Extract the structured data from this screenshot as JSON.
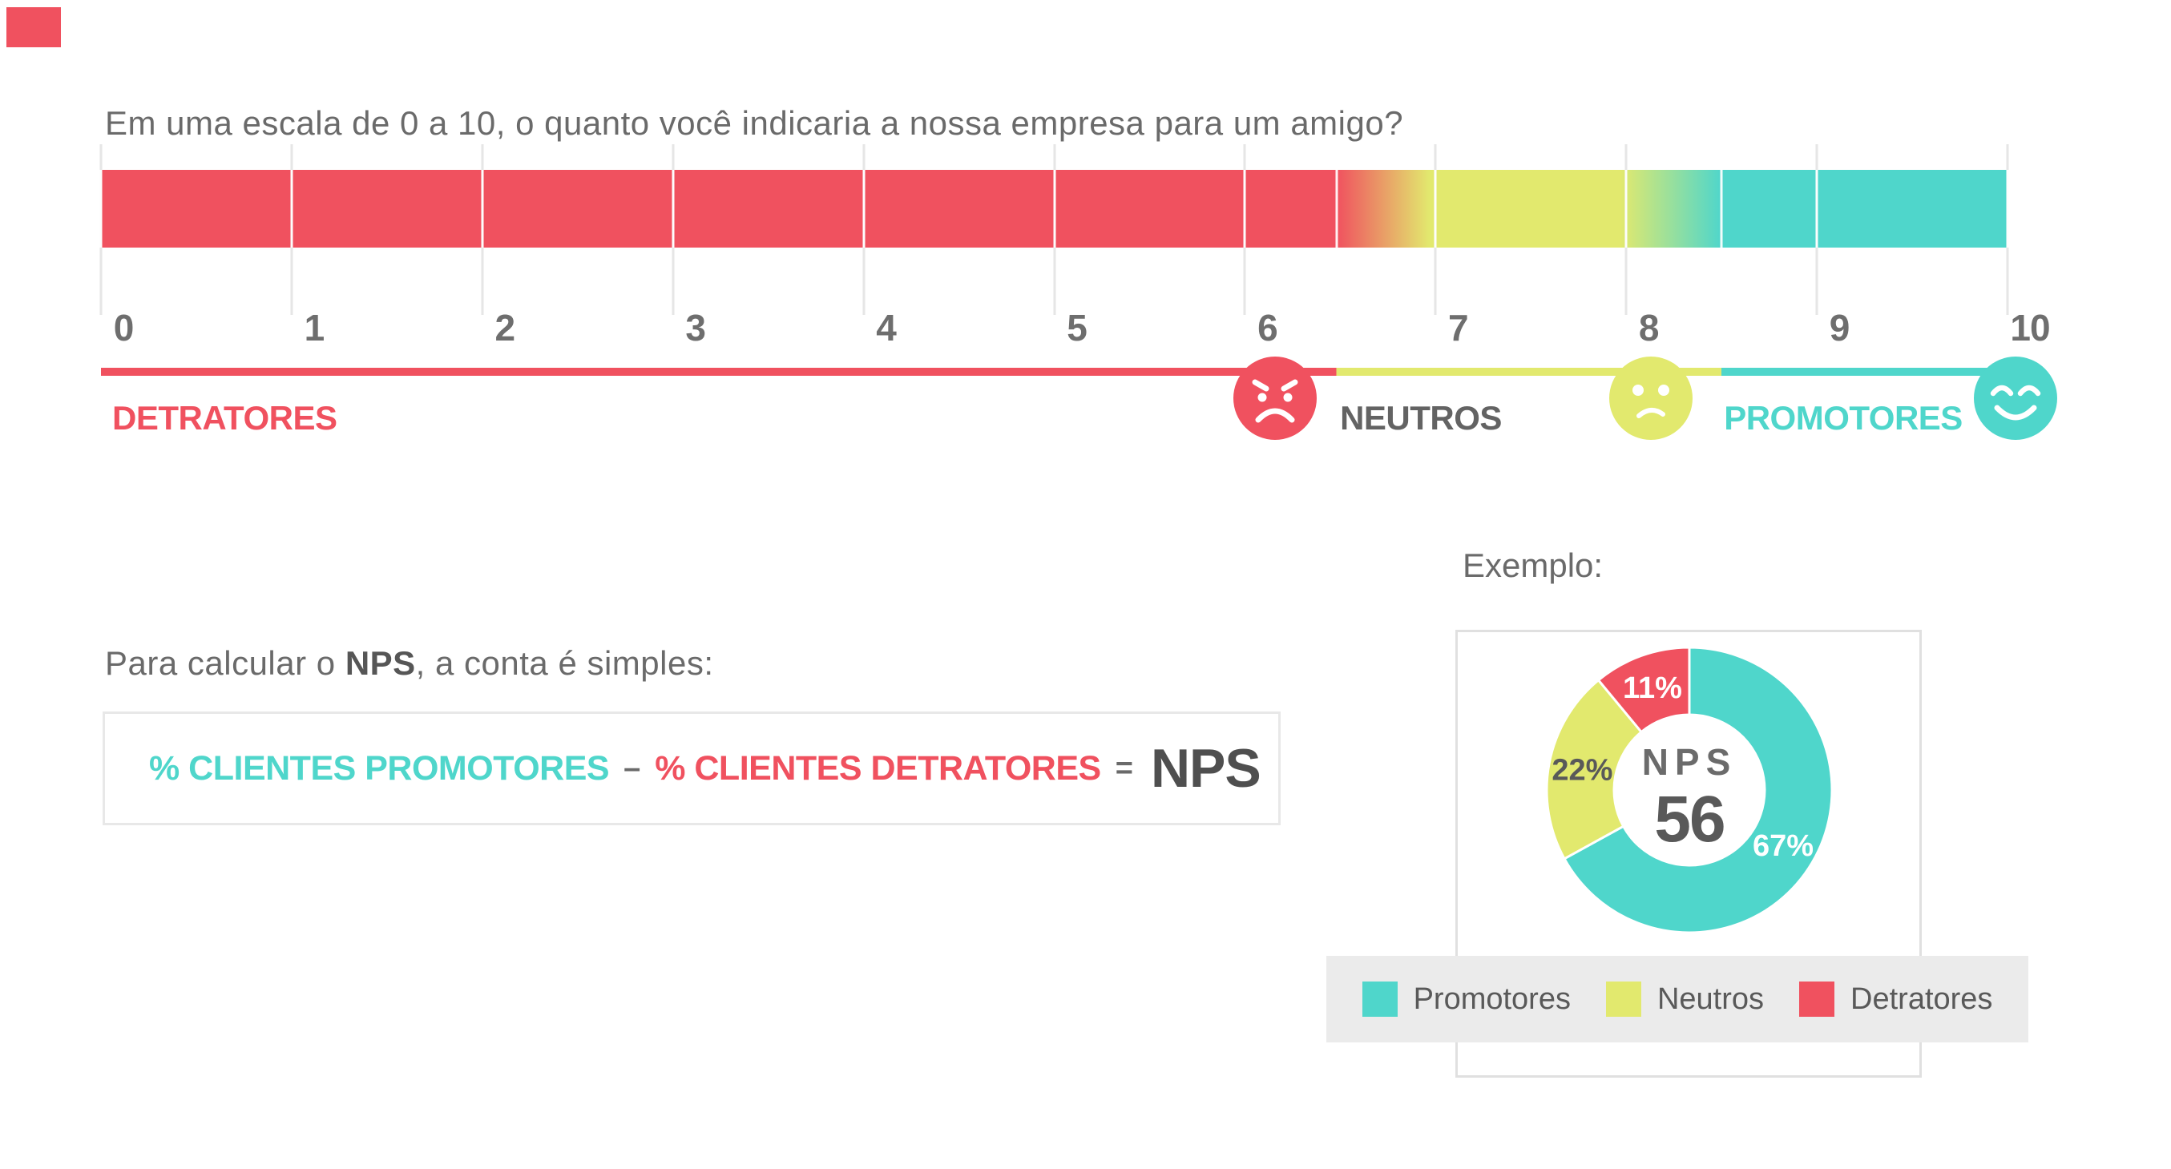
{
  "colors": {
    "red": "#F0515F",
    "yellow": "#E2E96E",
    "teal": "#4FD6CB",
    "text_gray": "#6A6A6A",
    "num_gray": "#6E6E6E",
    "tick_gray": "#E6E6E6",
    "box_border": "#E8E8E8",
    "legend_bg": "#EBEBEB"
  },
  "title": "Em uma escala de 0 a 10, o quanto você indicaria a nossa empresa para um amigo?",
  "scale": {
    "ticks": [
      "0",
      "1",
      "2",
      "3",
      "4",
      "5",
      "6",
      "7",
      "8",
      "9",
      "10"
    ],
    "groups": {
      "detractors": "DETRATORES",
      "neutrals": "NEUTROS",
      "promoters": "PROMOTORES"
    }
  },
  "formula": {
    "intro_prefix": "Para calcular o ",
    "intro_bold": "NPS",
    "intro_suffix": ", a conta é simples:",
    "promoters": "% CLIENTES PROMOTORES",
    "minus": "–",
    "detractors": "% CLIENTES DETRATORES",
    "equals": "=",
    "result": "NPS"
  },
  "example": {
    "heading": "Exemplo:",
    "center_label": "NPS",
    "center_value": "56"
  },
  "chart_data": {
    "type": "pie",
    "subtype": "donut",
    "title": "Exemplo: NPS 56",
    "start_angle_deg": 0,
    "direction": "clockwise",
    "inner_radius_ratio": 0.53,
    "legend_position": "bottom",
    "segments": [
      {
        "label": "Promotores",
        "value": 67,
        "display": "67%",
        "color_key": "teal",
        "label_color": "#FFFFFF"
      },
      {
        "label": "Neutros",
        "value": 22,
        "display": "22%",
        "color_key": "yellow",
        "label_color": "#595959"
      },
      {
        "label": "Detratores",
        "value": 11,
        "display": "11%",
        "color_key": "red",
        "label_color": "#FFFFFF"
      }
    ],
    "center": {
      "label": "NPS",
      "value": 56
    }
  }
}
